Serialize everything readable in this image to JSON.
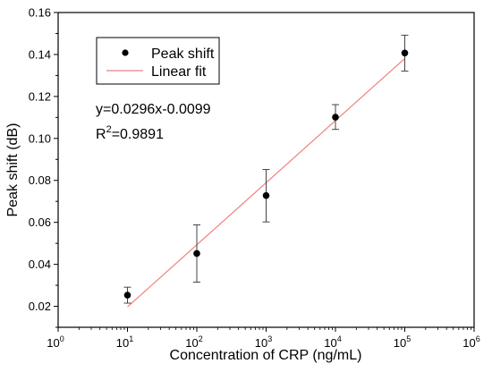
{
  "chart_data": {
    "type": "scatter",
    "title": "",
    "xlabel": "Concentration of CRP (ng/mL)",
    "ylabel": "Peak shift (dB)",
    "xscale": "log",
    "xlim": [
      1,
      1000000
    ],
    "ylim": [
      0.01,
      0.16
    ],
    "x_ticks": [
      {
        "value": 1,
        "base": "10",
        "exp": "0"
      },
      {
        "value": 10,
        "base": "10",
        "exp": "1"
      },
      {
        "value": 100,
        "base": "10",
        "exp": "2"
      },
      {
        "value": 1000,
        "base": "10",
        "exp": "3"
      },
      {
        "value": 10000,
        "base": "10",
        "exp": "4"
      },
      {
        "value": 100000,
        "base": "10",
        "exp": "5"
      },
      {
        "value": 1000000,
        "base": "10",
        "exp": "6"
      }
    ],
    "y_ticks": [
      "0.02",
      "0.04",
      "0.06",
      "0.08",
      "0.10",
      "0.12",
      "0.14",
      "0.16"
    ],
    "series": [
      {
        "name": "Peak shift",
        "kind": "points",
        "color": "#000000",
        "x": [
          10,
          100,
          1000,
          10000,
          100000
        ],
        "y": [
          0.0253,
          0.0452,
          0.0728,
          0.1101,
          0.1407
        ],
        "err_low": [
          0.0215,
          0.0315,
          0.0602,
          0.1043,
          0.1321
        ],
        "err_high": [
          0.0291,
          0.0588,
          0.0852,
          0.1161,
          0.1492
        ]
      },
      {
        "name": "Linear fit",
        "kind": "line",
        "color": "#f08080",
        "slope": 0.0296,
        "intercept": -0.0099
      }
    ],
    "annotations": {
      "equation": "y=0.0296x-0.0099",
      "r2_prefix": "R",
      "r2_sup": "2",
      "r2_value": "=0.9891"
    },
    "legend_position": "top-left",
    "grid": false
  }
}
